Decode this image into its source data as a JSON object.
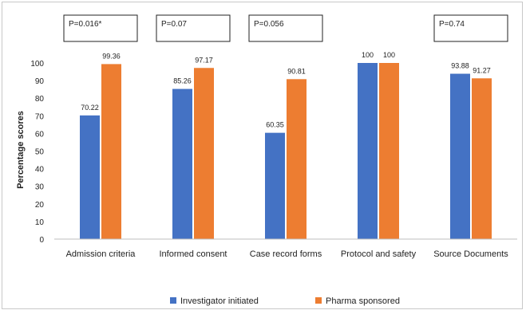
{
  "chart_data": {
    "type": "bar",
    "categories": [
      "Admission criteria",
      "Informed consent",
      "Case record forms",
      "Protocol and safety",
      "Source Documents"
    ],
    "series": [
      {
        "name": "Investigator initiated",
        "color": "#4472c4",
        "values": [
          70.22,
          85.26,
          60.35,
          100,
          93.88
        ]
      },
      {
        "name": "Pharma sponsored",
        "color": "#ed7d31",
        "values": [
          99.36,
          97.17,
          90.81,
          100,
          91.27
        ]
      }
    ],
    "data_labels": [
      [
        "70.22",
        "85.26",
        "60.35",
        "100",
        "93.88"
      ],
      [
        "99.36",
        "97.17",
        "90.81",
        "100",
        "91.27"
      ]
    ],
    "annotations": [
      "P=0.016*",
      "P=0.07",
      "P=0.056",
      "",
      "P=0.74"
    ],
    "ylabel": "Percentage scores",
    "ylim": [
      0,
      100
    ],
    "yticks": [
      0,
      10,
      20,
      30,
      40,
      50,
      60,
      70,
      80,
      90,
      100
    ],
    "grid": false,
    "legend": "bottom"
  }
}
